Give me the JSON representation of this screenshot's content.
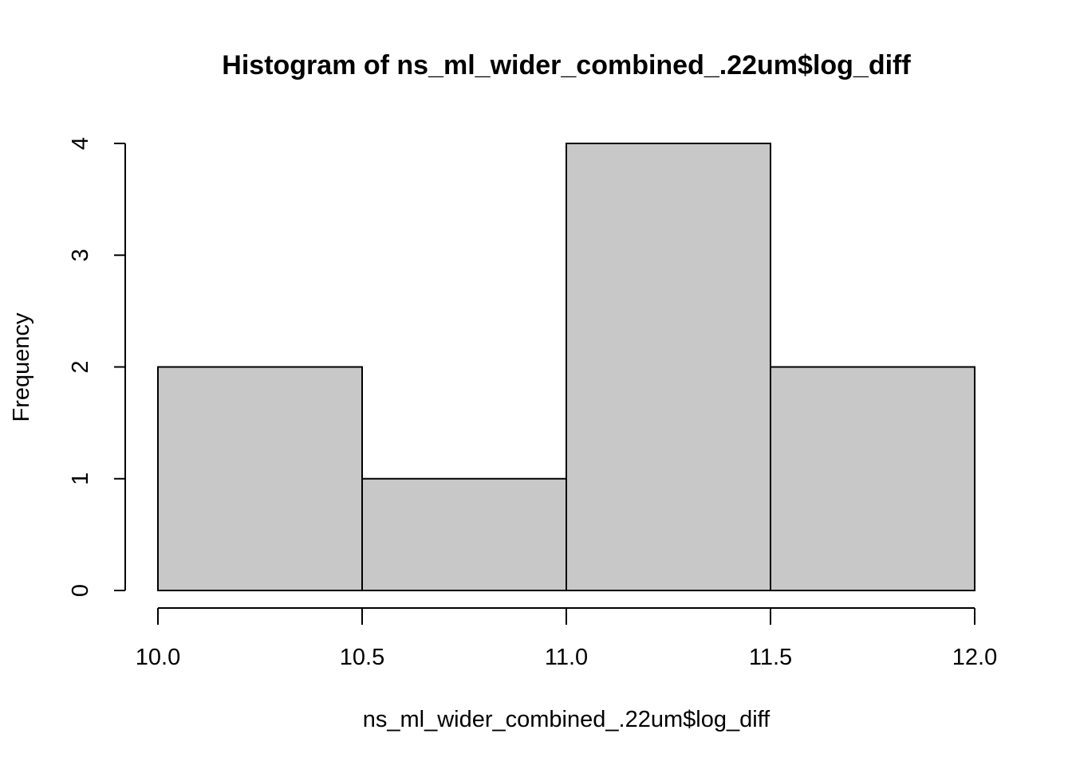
{
  "chart_data": {
    "type": "bar",
    "title": "Histogram of ns_ml_wider_combined_.22um$log_diff",
    "xlabel": "ns_ml_wider_combined_.22um$log_diff",
    "ylabel": "Frequency",
    "bins": [
      {
        "start": 10.0,
        "end": 10.5,
        "count": 2
      },
      {
        "start": 10.5,
        "end": 11.0,
        "count": 1
      },
      {
        "start": 11.0,
        "end": 11.5,
        "count": 4
      },
      {
        "start": 11.5,
        "end": 12.0,
        "count": 2
      }
    ],
    "xlim": [
      10.0,
      12.0
    ],
    "ylim": [
      0,
      4
    ],
    "x_ticks": [
      "10.0",
      "10.5",
      "11.0",
      "11.5",
      "12.0"
    ],
    "y_ticks": [
      "0",
      "1",
      "2",
      "3",
      "4"
    ],
    "bar_color": "#c8c8c8",
    "border_color": "#000000",
    "grid": false,
    "legend": "none"
  }
}
